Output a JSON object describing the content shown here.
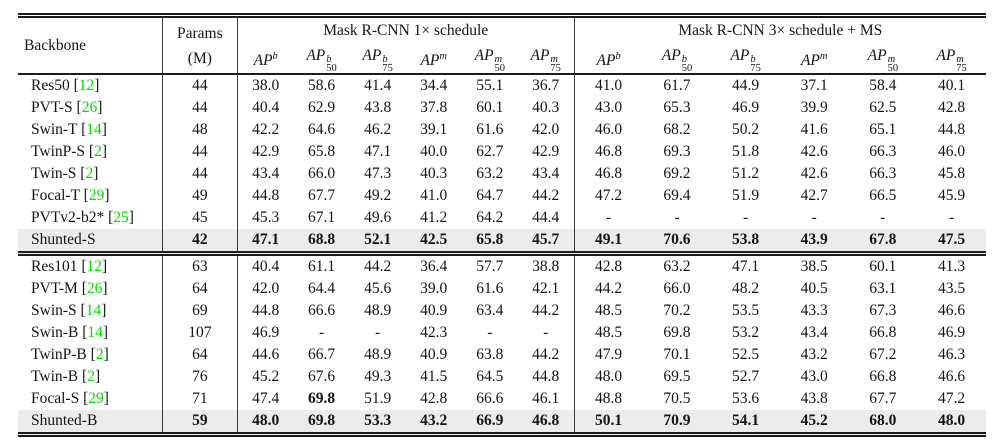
{
  "header": {
    "backbone": "Backbone",
    "params_line1": "Params",
    "params_line2": "(M)",
    "group1": "Mask R-CNN 1× schedule",
    "group2": "Mask R-CNN 3× schedule + MS",
    "metric_base": "AP",
    "metrics": [
      {
        "sup": "b",
        "sub": ""
      },
      {
        "sup": "b",
        "sub": "50"
      },
      {
        "sup": "b",
        "sub": "75"
      },
      {
        "sup": "m",
        "sub": ""
      },
      {
        "sup": "m",
        "sub": "50"
      },
      {
        "sup": "m",
        "sub": "75"
      }
    ]
  },
  "colors": {
    "cite_green": "#00dc00",
    "highlight_bg": "#ececec",
    "rule": "#1c1c1c"
  },
  "chart_data": {
    "type": "table",
    "title": "Mask R-CNN object detection and instance segmentation results",
    "column_groups": [
      "Mask R-CNN 1× schedule",
      "Mask R-CNN 3× schedule + MS"
    ],
    "metric_columns": [
      "APb",
      "APb50",
      "APb75",
      "APm",
      "APm50",
      "APm75"
    ]
  },
  "blocks": [
    {
      "rows": [
        {
          "name": "Res50",
          "cite": "12",
          "params": "44",
          "highlight": false,
          "bold_1x": [],
          "bold_3x": [],
          "values_1x": [
            "38.0",
            "58.6",
            "41.4",
            "34.4",
            "55.1",
            "36.7"
          ],
          "values_3x": [
            "41.0",
            "61.7",
            "44.9",
            "37.1",
            "58.4",
            "40.1"
          ]
        },
        {
          "name": "PVT-S",
          "cite": "26",
          "params": "44",
          "highlight": false,
          "bold_1x": [],
          "bold_3x": [],
          "values_1x": [
            "40.4",
            "62.9",
            "43.8",
            "37.8",
            "60.1",
            "40.3"
          ],
          "values_3x": [
            "43.0",
            "65.3",
            "46.9",
            "39.9",
            "62.5",
            "42.8"
          ]
        },
        {
          "name": "Swin-T",
          "cite": "14",
          "params": "48",
          "highlight": false,
          "bold_1x": [],
          "bold_3x": [],
          "values_1x": [
            "42.2",
            "64.6",
            "46.2",
            "39.1",
            "61.6",
            "42.0"
          ],
          "values_3x": [
            "46.0",
            "68.2",
            "50.2",
            "41.6",
            "65.1",
            "44.8"
          ]
        },
        {
          "name": "TwinP-S",
          "cite": "2",
          "params": "44",
          "highlight": false,
          "bold_1x": [],
          "bold_3x": [],
          "values_1x": [
            "42.9",
            "65.8",
            "47.1",
            "40.0",
            "62.7",
            "42.9"
          ],
          "values_3x": [
            "46.8",
            "69.3",
            "51.8",
            "42.6",
            "66.3",
            "46.0"
          ]
        },
        {
          "name": "Twin-S",
          "cite": "2",
          "params": "44",
          "highlight": false,
          "bold_1x": [],
          "bold_3x": [],
          "values_1x": [
            "43.4",
            "66.0",
            "47.3",
            "40.3",
            "63.2",
            "43.4"
          ],
          "values_3x": [
            "46.8",
            "69.2",
            "51.2",
            "42.6",
            "66.3",
            "45.8"
          ]
        },
        {
          "name": "Focal-T",
          "cite": "29",
          "params": "49",
          "highlight": false,
          "bold_1x": [],
          "bold_3x": [],
          "values_1x": [
            "44.8",
            "67.7",
            "49.2",
            "41.0",
            "64.7",
            "44.2"
          ],
          "values_3x": [
            "47.2",
            "69.4",
            "51.9",
            "42.7",
            "66.5",
            "45.9"
          ]
        },
        {
          "name": "PVTv2-b2*",
          "cite": "25",
          "params": "45",
          "highlight": false,
          "bold_1x": [],
          "bold_3x": [],
          "values_1x": [
            "45.3",
            "67.1",
            "49.6",
            "41.2",
            "64.2",
            "44.4"
          ],
          "values_3x": [
            "-",
            "-",
            "-",
            "-",
            "-",
            "-"
          ]
        },
        {
          "name": "Shunted-S",
          "cite": "",
          "params": "42",
          "highlight": true,
          "bold_1x": [],
          "bold_3x": [],
          "values_1x": [
            "47.1",
            "68.8",
            "52.1",
            "42.5",
            "65.8",
            "45.7"
          ],
          "values_3x": [
            "49.1",
            "70.6",
            "53.8",
            "43.9",
            "67.8",
            "47.5"
          ]
        }
      ]
    },
    {
      "rows": [
        {
          "name": "Res101",
          "cite": "12",
          "params": "63",
          "highlight": false,
          "bold_1x": [],
          "bold_3x": [],
          "values_1x": [
            "40.4",
            "61.1",
            "44.2",
            "36.4",
            "57.7",
            "38.8"
          ],
          "values_3x": [
            "42.8",
            "63.2",
            "47.1",
            "38.5",
            "60.1",
            "41.3"
          ]
        },
        {
          "name": "PVT-M",
          "cite": "26",
          "params": "64",
          "highlight": false,
          "bold_1x": [],
          "bold_3x": [],
          "values_1x": [
            "42.0",
            "64.4",
            "45.6",
            "39.0",
            "61.6",
            "42.1"
          ],
          "values_3x": [
            "44.2",
            "66.0",
            "48.2",
            "40.5",
            "63.1",
            "43.5"
          ]
        },
        {
          "name": "Swin-S",
          "cite": "14",
          "params": "69",
          "highlight": false,
          "bold_1x": [],
          "bold_3x": [],
          "values_1x": [
            "44.8",
            "66.6",
            "48.9",
            "40.9",
            "63.4",
            "44.2"
          ],
          "values_3x": [
            "48.5",
            "70.2",
            "53.5",
            "43.3",
            "67.3",
            "46.6"
          ]
        },
        {
          "name": "Swin-B",
          "cite": "14",
          "params": "107",
          "highlight": false,
          "bold_1x": [],
          "bold_3x": [],
          "values_1x": [
            "46.9",
            "-",
            "-",
            "42.3",
            "-",
            "-"
          ],
          "values_3x": [
            "48.5",
            "69.8",
            "53.2",
            "43.4",
            "66.8",
            "46.9"
          ]
        },
        {
          "name": "TwinP-B",
          "cite": "2",
          "params": "64",
          "highlight": false,
          "bold_1x": [],
          "bold_3x": [],
          "values_1x": [
            "44.6",
            "66.7",
            "48.9",
            "40.9",
            "63.8",
            "44.2"
          ],
          "values_3x": [
            "47.9",
            "70.1",
            "52.5",
            "43.2",
            "67.2",
            "46.3"
          ]
        },
        {
          "name": "Twin-B",
          "cite": "2",
          "params": "76",
          "highlight": false,
          "bold_1x": [],
          "bold_3x": [],
          "values_1x": [
            "45.2",
            "67.6",
            "49.3",
            "41.5",
            "64.5",
            "44.8"
          ],
          "values_3x": [
            "48.0",
            "69.5",
            "52.7",
            "43.0",
            "66.8",
            "46.6"
          ]
        },
        {
          "name": "Focal-S",
          "cite": "29",
          "params": "71",
          "highlight": false,
          "bold_1x": [
            1
          ],
          "bold_3x": [],
          "values_1x": [
            "47.4",
            "69.8",
            "51.9",
            "42.8",
            "66.6",
            "46.1"
          ],
          "values_3x": [
            "48.8",
            "70.5",
            "53.6",
            "43.8",
            "67.7",
            "47.2"
          ]
        },
        {
          "name": "Shunted-B",
          "cite": "",
          "params": "59",
          "highlight": true,
          "bold_1x": [],
          "bold_3x": [],
          "values_1x": [
            "48.0",
            "69.8",
            "53.3",
            "43.2",
            "66.9",
            "46.8"
          ],
          "values_3x": [
            "50.1",
            "70.9",
            "54.1",
            "45.2",
            "68.0",
            "48.0"
          ]
        }
      ]
    }
  ]
}
